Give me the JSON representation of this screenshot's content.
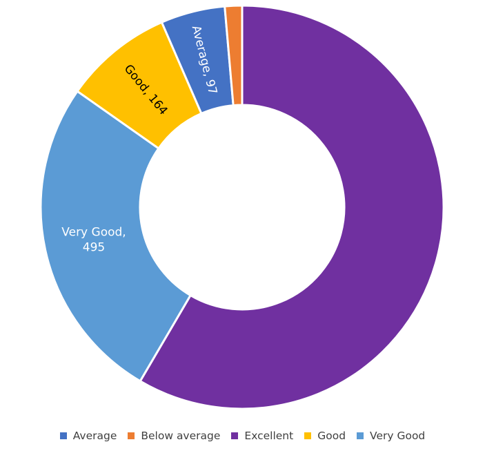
{
  "chart_data": {
    "type": "pie",
    "donut": true,
    "title": "",
    "categories": [
      "Average",
      "Below average",
      "Excellent",
      "Good",
      "Very Good"
    ],
    "values": [
      97,
      26,
      1100,
      164,
      495
    ],
    "colors": [
      "#4472C4",
      "#ED7D31",
      "#7030A0",
      "#FFC000",
      "#5B9BD5"
    ],
    "data_labels": [
      {
        "name": "Average",
        "value": "97",
        "text": "Average, 97",
        "label_color": "#ffffff"
      },
      {
        "name": "Below average",
        "value": "",
        "text": "",
        "label_color": "#ffffff"
      },
      {
        "name": "Excellent",
        "value": "",
        "text": "",
        "label_color": "#ffffff"
      },
      {
        "name": "Good",
        "value": "164",
        "text": "Good, 164",
        "label_color": "#000000"
      },
      {
        "name": "Very Good",
        "value": "495",
        "lines": [
          "Very Good,",
          "495"
        ],
        "label_color": "#ffffff"
      }
    ],
    "legend": {
      "position": "bottom",
      "entries": [
        "Average",
        "Below average",
        "Excellent",
        "Good",
        "Very Good"
      ]
    }
  }
}
